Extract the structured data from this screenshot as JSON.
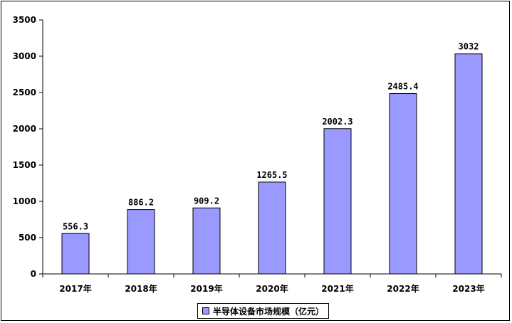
{
  "chart_data": {
    "type": "bar",
    "categories": [
      "2017年",
      "2018年",
      "2019年",
      "2020年",
      "2021年",
      "2022年",
      "2023年"
    ],
    "series": [
      {
        "name": "半导体设备市场规模（亿元）",
        "values": [
          556.3,
          886.2,
          909.2,
          1265.5,
          2002.3,
          2485.4,
          3032
        ]
      }
    ],
    "data_labels": [
      "556.3",
      "886.2",
      "909.2",
      "1265.5",
      "2002.3",
      "2485.4",
      "3032"
    ],
    "yticks": [
      "0",
      "500",
      "1000",
      "1500",
      "2000",
      "2500",
      "3000",
      "3500"
    ],
    "ylim": [
      0,
      3500
    ],
    "grid": false,
    "legend_position": "bottom",
    "bar_color": "#9999ff",
    "bar_edge_color": "#000000"
  }
}
